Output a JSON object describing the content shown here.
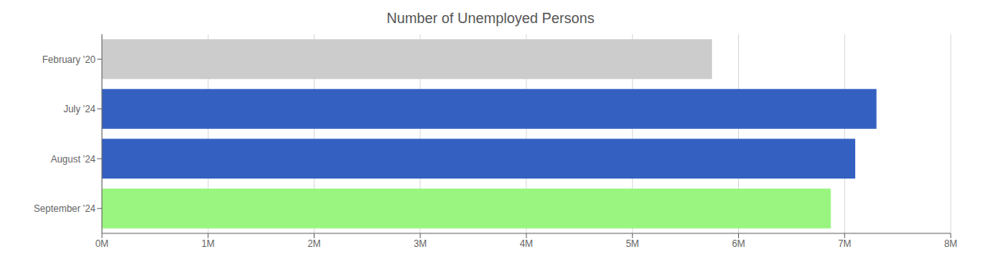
{
  "chart_data": {
    "type": "bar",
    "orientation": "horizontal",
    "title": "Number of Unemployed Persons",
    "categories": [
      "February '20",
      "July '24",
      "August '24",
      "September '24"
    ],
    "values": [
      5750000,
      7300000,
      7100000,
      6870000
    ],
    "colors": [
      "#cccccc",
      "#3461c1",
      "#3461c1",
      "#99f580"
    ],
    "xlim": [
      0,
      8000000
    ],
    "xticks": [
      {
        "value": 0,
        "label": "0M"
      },
      {
        "value": 1000000,
        "label": "1M"
      },
      {
        "value": 2000000,
        "label": "2M"
      },
      {
        "value": 3000000,
        "label": "3M"
      },
      {
        "value": 4000000,
        "label": "4M"
      },
      {
        "value": 5000000,
        "label": "5M"
      },
      {
        "value": 6000000,
        "label": "6M"
      },
      {
        "value": 7000000,
        "label": "7M"
      },
      {
        "value": 8000000,
        "label": "8M"
      }
    ],
    "grid": true
  }
}
